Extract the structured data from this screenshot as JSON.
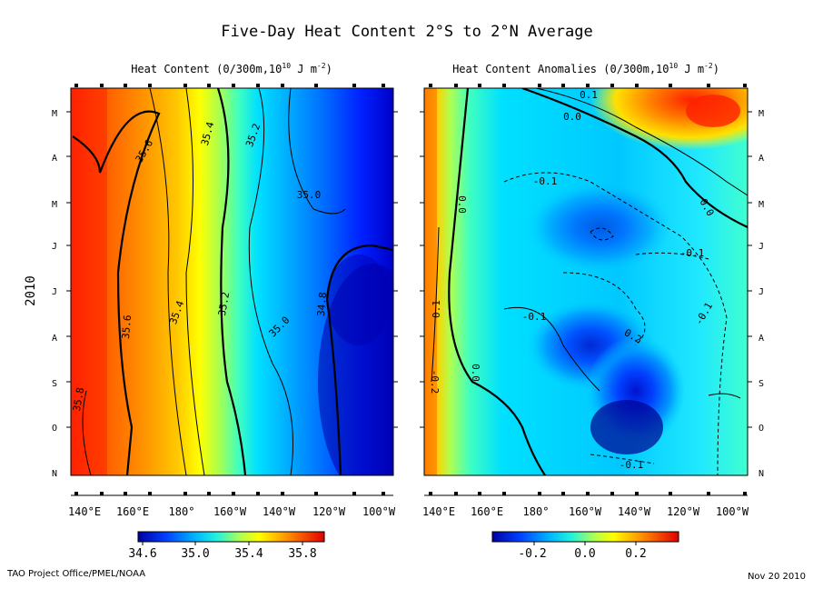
{
  "title": "Five-Day Heat Content  2°S to 2°N Average",
  "footer_left": "TAO Project Office/PMEL/NOAA",
  "footer_right": "Nov 20 2010",
  "year_label": "2010",
  "month_labels": [
    "M",
    "A",
    "M",
    "J",
    "J",
    "A",
    "S",
    "O",
    "N"
  ],
  "lon_ticks": [
    "140°E",
    "160°E",
    "180°",
    "160°W",
    "140°W",
    "120°W",
    "100°W"
  ],
  "chart_data": [
    {
      "type": "heatmap",
      "title": "Heat Content (0/300m,10^10 J m^-2)",
      "title_main": "Heat Content (0/300m,10",
      "title_exp1": "10",
      "title_mid": " J m",
      "title_exp2": "-2",
      "title_end": ")",
      "x_ticks": [
        "140°E",
        "160°E",
        "180°",
        "160°W",
        "140°W",
        "120°W",
        "100°W"
      ],
      "y_ticks": [
        "M",
        "A",
        "M",
        "J",
        "J",
        "A",
        "S",
        "O",
        "N"
      ],
      "colorbar_ticks": [
        "34.6",
        "35.0",
        "35.4",
        "35.8"
      ],
      "colorbar_range": [
        34.5,
        35.9
      ],
      "contour_labels": [
        "35.6",
        "35.4",
        "35.2",
        "35.0",
        "35.6",
        "35.4",
        "35.2",
        "35.0",
        "34.8",
        "35.8"
      ],
      "field_description": "High heat content (~35.8) in the west Pacific decreasing eastward to ~34.7 in the east"
    },
    {
      "type": "heatmap",
      "title": "Heat Content Anomalies (0/300m,10^10 J m^-2)",
      "title_main": "Heat Content Anomalies (0/300m,10",
      "title_exp1": "10",
      "title_mid": " J m",
      "title_exp2": "-2",
      "title_end": ")",
      "x_ticks": [
        "140°E",
        "160°E",
        "180°",
        "160°W",
        "140°W",
        "120°W",
        "100°W"
      ],
      "y_ticks": [
        "M",
        "A",
        "M",
        "J",
        "J",
        "A",
        "S",
        "O",
        "N"
      ],
      "colorbar_ticks": [
        "-0.2",
        "0.0",
        "0.2"
      ],
      "colorbar_range": [
        -0.35,
        0.35
      ],
      "contour_labels": [
        "0.1",
        "0.0",
        "-0.1",
        "0.0",
        "-0.1",
        "0.0",
        "-0.1",
        "-0.1",
        "-0.2",
        "0.1",
        "0.0",
        "0.2",
        "-0.1",
        "-0.2"
      ]
    }
  ],
  "colors": {
    "scale": [
      "#00009b",
      "#0000ff",
      "#0060ff",
      "#00aaff",
      "#00e0ff",
      "#40ffbf",
      "#a0ff60",
      "#ffff00",
      "#ffc000",
      "#ff7f00",
      "#ff3000",
      "#c00000"
    ]
  }
}
